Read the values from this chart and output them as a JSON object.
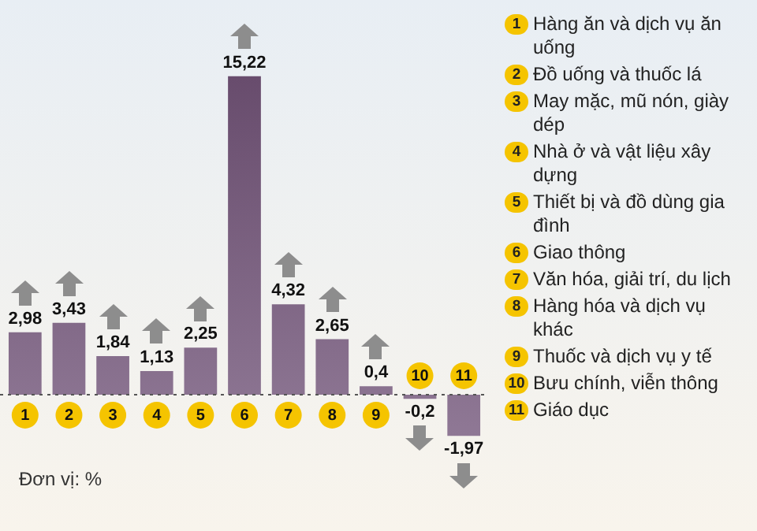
{
  "chart_data": {
    "type": "bar",
    "categories": [
      "1",
      "2",
      "3",
      "4",
      "5",
      "6",
      "7",
      "8",
      "9",
      "10",
      "11"
    ],
    "series": [
      {
        "color": "#664a6b",
        "values": [
          2.98,
          3.43,
          1.84,
          1.13,
          2.25,
          15.22,
          4.32,
          2.65,
          0.4,
          -0.2,
          -1.97
        ],
        "value_labels": [
          "2,98",
          "3,43",
          "1,84",
          "1,13",
          "2,25",
          "15,22",
          "4,32",
          "2,65",
          "0,4",
          "-0,2",
          "-1,97"
        ]
      }
    ],
    "annotations": [
      "Hàng ăn và dịch vụ ăn uống",
      "Đồ uống và thuốc lá",
      "May mặc, mũ nón, giày dép",
      "Nhà ở và vật liệu xây dựng",
      "Thiết bị và đồ dùng gia đình",
      "Giao thông",
      "Văn hóa, giải trí, du lịch",
      "Hàng hóa và dịch vụ khác",
      "Thuốc và dịch vụ y tế",
      "Bưu chính, viễn thông",
      "Giáo dục",
      "Đơn vị: %"
    ],
    "ref_lines": [
      {
        "axis": "y",
        "value": 0,
        "color": "#555555",
        "line_style": "dotted"
      }
    ],
    "legend": false,
    "tick_labels": "x"
  }
}
